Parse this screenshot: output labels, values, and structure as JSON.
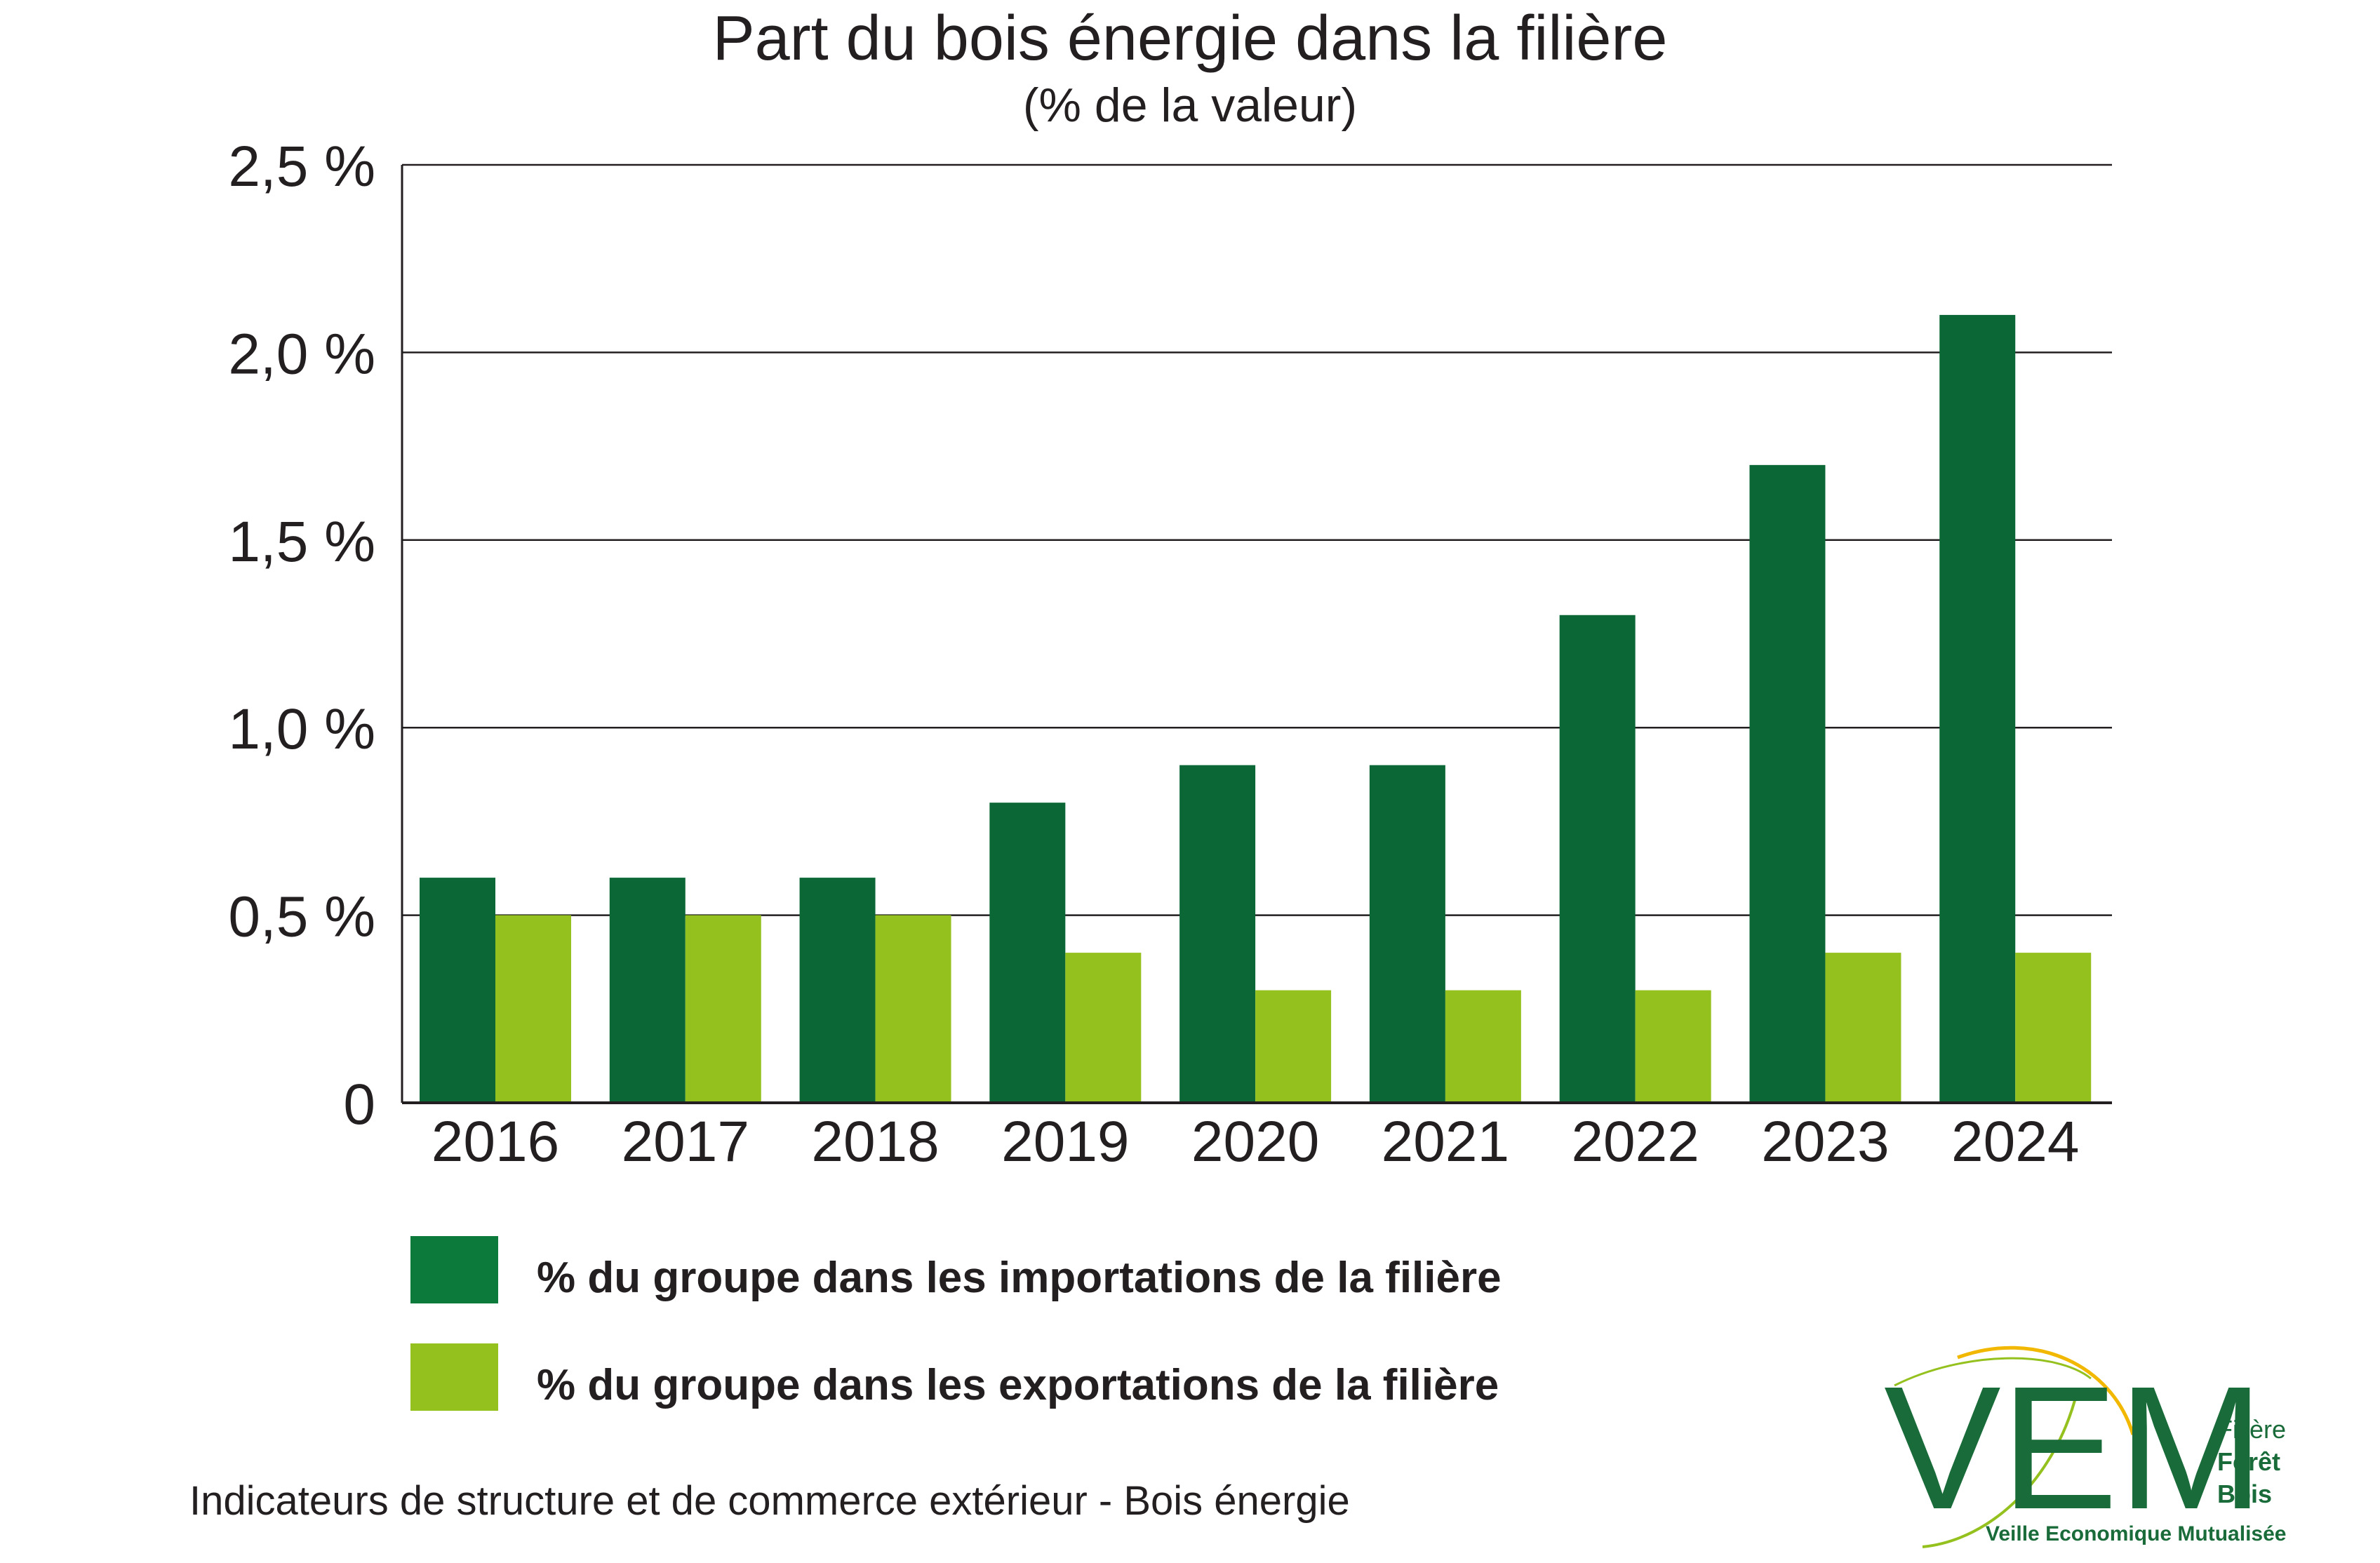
{
  "chart_data": {
    "type": "bar",
    "title": "Part du bois énergie dans la filière",
    "subtitle": "(% de la valeur)",
    "categories": [
      "2016",
      "2017",
      "2018",
      "2019",
      "2020",
      "2021",
      "2022",
      "2023",
      "2024"
    ],
    "series": [
      {
        "name": "% du groupe dans les importations de la filière",
        "color": "#0b6836",
        "values": [
          0.6,
          0.6,
          0.6,
          0.8,
          0.9,
          0.9,
          1.3,
          1.7,
          2.1
        ]
      },
      {
        "name": "% du groupe dans les exportations de la filière",
        "color": "#95c11f",
        "values": [
          0.5,
          0.5,
          0.5,
          0.4,
          0.3,
          0.3,
          0.3,
          0.4,
          0.4
        ]
      }
    ],
    "ylim": [
      0,
      2.5
    ],
    "yticks": [
      0,
      0.5,
      1.0,
      1.5,
      2.0,
      2.5
    ],
    "ytick_labels": [
      "0",
      "0,5 %",
      "1,0 %",
      "1,5 %",
      "2,0 %",
      "2,5 %"
    ],
    "grid": true,
    "legend_position": "bottom"
  },
  "legend": {
    "imports_label": "% du groupe dans les importations de la filière",
    "imports_color": "#0b7a3b",
    "exports_label": "% du groupe dans les exportations de la filière",
    "exports_color": "#95c11f"
  },
  "footnote": "Indicateurs de structure et de commerce extérieur - Bois énergie",
  "logo": {
    "letters": "VEM",
    "line1": "Filière",
    "line2": "Forêt",
    "line3": "Bois",
    "tagline": "Veille Economique Mutualisée"
  }
}
